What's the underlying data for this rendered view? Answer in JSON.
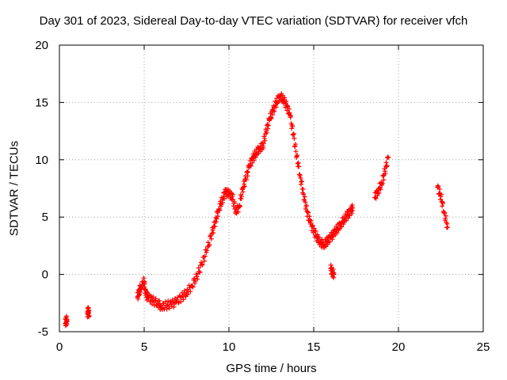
{
  "chart_data": {
    "type": "scatter",
    "title": "Day 301 of 2023, Sidereal Day-to-day VTEC variation (SDTVAR) for receiver vfch",
    "xlabel": "GPS time / hours",
    "ylabel": "SDTVAR / TECUs",
    "xlim": [
      0,
      25
    ],
    "ylim": [
      -5,
      20
    ],
    "xticks": [
      "0",
      "5",
      "10",
      "15",
      "20",
      "25"
    ],
    "yticks": [
      "-5",
      "0",
      "5",
      "10",
      "15",
      "20"
    ],
    "grid": true,
    "marker": "plus",
    "series": [
      {
        "name": "SDTVAR",
        "color": "#ff0000",
        "x": [
          0.35,
          0.4,
          0.45,
          1.65,
          1.7,
          1.75,
          4.6,
          4.7,
          4.8,
          5.0,
          5.1,
          5.25,
          5.5,
          5.8,
          6.0,
          6.3,
          6.6,
          6.9,
          7.2,
          7.5,
          7.8,
          8.1,
          8.4,
          8.7,
          9.0,
          9.2,
          9.4,
          9.6,
          9.8,
          10.0,
          10.2,
          10.4,
          10.6,
          10.8,
          11.0,
          11.2,
          11.4,
          11.6,
          11.8,
          12.0,
          12.2,
          12.4,
          12.6,
          12.8,
          13.0,
          13.2,
          13.4,
          13.6,
          13.8,
          14.0,
          14.2,
          14.4,
          14.6,
          14.8,
          15.0,
          15.2,
          15.4,
          15.6,
          15.8,
          16.0,
          16.2,
          16.4,
          16.6,
          16.8,
          17.0,
          17.2,
          17.3,
          18.6,
          18.8,
          19.0,
          19.2,
          19.4,
          22.3,
          22.5,
          22.7,
          22.9
        ],
        "y": [
          -4.3,
          -3.9,
          -4.1,
          -3.4,
          -3.1,
          -3.6,
          -2.0,
          -1.5,
          -1.1,
          -0.6,
          -1.8,
          -2.0,
          -2.3,
          -2.5,
          -2.8,
          -2.7,
          -2.6,
          -2.4,
          -2.0,
          -1.6,
          -1.0,
          -0.2,
          0.9,
          2.1,
          3.6,
          4.6,
          5.7,
          6.5,
          7.2,
          7.0,
          6.8,
          5.5,
          5.9,
          7.4,
          8.4,
          9.4,
          10.1,
          10.6,
          11.0,
          11.2,
          12.5,
          13.5,
          14.3,
          15.0,
          15.6,
          15.3,
          14.7,
          13.9,
          12.2,
          10.3,
          8.6,
          7.0,
          5.5,
          4.5,
          3.8,
          3.2,
          2.8,
          2.6,
          2.9,
          3.2,
          3.6,
          4.0,
          4.4,
          4.8,
          5.2,
          5.5,
          5.8,
          6.7,
          7.3,
          7.9,
          9.0,
          10.2,
          7.6,
          6.8,
          5.4,
          4.1
        ],
        "outliers_x": [
          16.0,
          16.1,
          16.2
        ],
        "outliers_y": [
          0.5,
          0.2,
          0.0
        ]
      }
    ]
  }
}
